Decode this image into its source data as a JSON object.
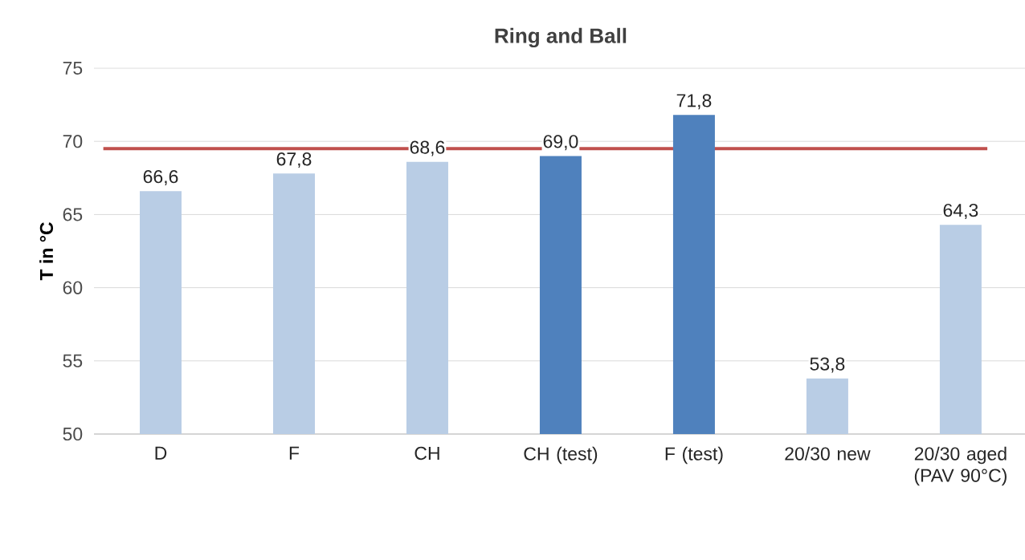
{
  "chart_data": {
    "type": "bar",
    "title": "Ring and Ball",
    "ylabel": "T in °C",
    "categories": [
      "D",
      "F",
      "CH",
      "CH (test)",
      "F (test)",
      "20/30 new",
      "20/30 aged (PAV 90°C)"
    ],
    "values": [
      66.6,
      67.8,
      68.6,
      69.0,
      71.8,
      53.8,
      64.3
    ],
    "value_labels": [
      "66,6",
      "67,8",
      "68,6",
      "69,0",
      "71,8",
      "53,8",
      "64,3"
    ],
    "colors": [
      "#b9cde5",
      "#b9cde5",
      "#b9cde5",
      "#4f81bd",
      "#4f81bd",
      "#b9cde5",
      "#b9cde5"
    ],
    "ylim": [
      50,
      75
    ],
    "yticks": [
      50,
      55,
      60,
      65,
      70,
      75
    ],
    "grid": "y",
    "ref_lines": [
      {
        "axis": "y",
        "value": 69.5,
        "color": "#c0504d"
      }
    ]
  }
}
